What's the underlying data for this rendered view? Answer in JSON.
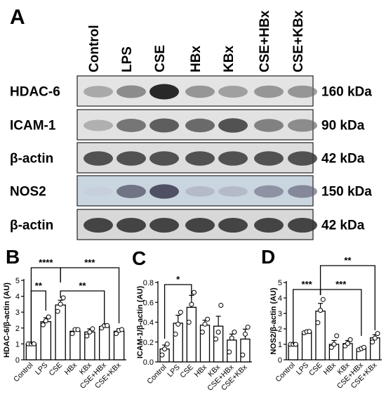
{
  "panel_letters": {
    "a": "A",
    "b": "B",
    "c": "C",
    "d": "D"
  },
  "blot": {
    "lanes": [
      "Control",
      "LPS",
      "CSE",
      "HBx",
      "KBx",
      "CSE+HBx",
      "CSE+KBx"
    ],
    "rows": [
      {
        "protein": "HDAC-6",
        "size": "160 kDa",
        "background": "#e4e4e4",
        "intensity": [
          0.45,
          0.6,
          1.0,
          0.55,
          0.5,
          0.55,
          0.55
        ]
      },
      {
        "protein": "ICAM-1",
        "size": "90 kDa",
        "background": "#e2e2e2",
        "intensity": [
          0.4,
          0.7,
          0.8,
          0.75,
          0.85,
          0.65,
          0.6
        ]
      },
      {
        "protein": "β-actin",
        "size": "42 kDa",
        "background": "#dddddd",
        "intensity": [
          0.85,
          0.85,
          0.85,
          0.85,
          0.85,
          0.85,
          0.85
        ]
      },
      {
        "protein": "NOS2",
        "size": "150 kDa",
        "background": "#c9d6e0",
        "intensity": [
          0.1,
          0.7,
          0.85,
          0.3,
          0.3,
          0.55,
          0.6
        ]
      },
      {
        "protein": "β-actin",
        "size": "42 kDa",
        "background": "#d8d8d8",
        "intensity": [
          0.9,
          0.9,
          0.9,
          0.9,
          0.9,
          0.9,
          0.9
        ]
      }
    ]
  },
  "chart_data": [
    {
      "panel": "B",
      "type": "bar",
      "categories": [
        "Control",
        "LPS",
        "CSE",
        "HBx",
        "KBx",
        "CSE+HBx",
        "CSE+KBx"
      ],
      "values": [
        1.0,
        2.4,
        3.45,
        1.8,
        1.75,
        2.1,
        1.8
      ],
      "errors": [
        0.05,
        0.25,
        0.3,
        0.15,
        0.2,
        0.1,
        0.15
      ],
      "points": [
        [
          1.0,
          1.0,
          1.0
        ],
        [
          2.2,
          2.45,
          2.7
        ],
        [
          3.05,
          3.5,
          3.9
        ],
        [
          1.65,
          1.9,
          1.9
        ],
        [
          1.5,
          1.75,
          1.95
        ],
        [
          2.0,
          2.15,
          2.15
        ],
        [
          1.65,
          1.85,
          1.9
        ]
      ],
      "ylabel": "HDAC-6/β-actin (AU)",
      "ylim": [
        0,
        5
      ],
      "yticks": [
        0,
        1,
        2,
        3,
        4,
        5
      ],
      "significance": [
        {
          "from": 0,
          "to": 1,
          "label": "**"
        },
        {
          "from": 0,
          "to": 2,
          "label": "****"
        },
        {
          "from": 2,
          "to": 6,
          "label": "***"
        },
        {
          "from": 2,
          "to": 5,
          "label": "**"
        }
      ]
    },
    {
      "panel": "C",
      "type": "bar",
      "categories": [
        "Control",
        "LPS",
        "CSE",
        "HBx",
        "KBx",
        "CSE+HBx",
        "CSE+KBx"
      ],
      "values": [
        0.13,
        0.39,
        0.55,
        0.37,
        0.36,
        0.22,
        0.23
      ],
      "errors": [
        0.04,
        0.08,
        0.12,
        0.05,
        0.1,
        0.06,
        0.1
      ],
      "points": [
        [
          0.07,
          0.13,
          0.18
        ],
        [
          0.28,
          0.38,
          0.5
        ],
        [
          0.4,
          0.58,
          0.7
        ],
        [
          0.3,
          0.38,
          0.43
        ],
        [
          0.23,
          0.3,
          0.57
        ],
        [
          0.1,
          0.24,
          0.3
        ],
        [
          0.07,
          0.28,
          0.35
        ]
      ],
      "ylabel": "ICAM-1/β-actin (AU)",
      "ylim": [
        0,
        0.8
      ],
      "yticks": [
        0.0,
        0.2,
        0.4,
        0.6,
        0.8
      ],
      "significance": [
        {
          "from": 0,
          "to": 2,
          "label": "*"
        }
      ]
    },
    {
      "panel": "D",
      "type": "bar",
      "categories": [
        "Control",
        "LPS",
        "CSE",
        "HBx",
        "KBx",
        "CSE+HBx",
        "CSE+KBx"
      ],
      "values": [
        1.0,
        1.8,
        3.15,
        1.0,
        1.05,
        0.72,
        1.42
      ],
      "errors": [
        0.05,
        0.08,
        0.5,
        0.25,
        0.2,
        0.08,
        0.2
      ],
      "points": [
        [
          1.0,
          1.0,
          1.0
        ],
        [
          1.75,
          1.82,
          1.83
        ],
        [
          2.4,
          3.2,
          3.9
        ],
        [
          0.8,
          1.0,
          1.55
        ],
        [
          0.9,
          1.05,
          1.3
        ],
        [
          0.65,
          0.72,
          0.8
        ],
        [
          1.15,
          1.4,
          1.7
        ]
      ],
      "ylabel": "NOS2/β-actin (AU)",
      "ylim": [
        0,
        5
      ],
      "yticks": [
        0,
        1,
        2,
        3,
        4,
        5
      ],
      "significance": [
        {
          "from": 0,
          "to": 2,
          "label": "***"
        },
        {
          "from": 2,
          "to": 6,
          "label": "**"
        },
        {
          "from": 2,
          "to": 5,
          "label": "***"
        }
      ]
    }
  ]
}
